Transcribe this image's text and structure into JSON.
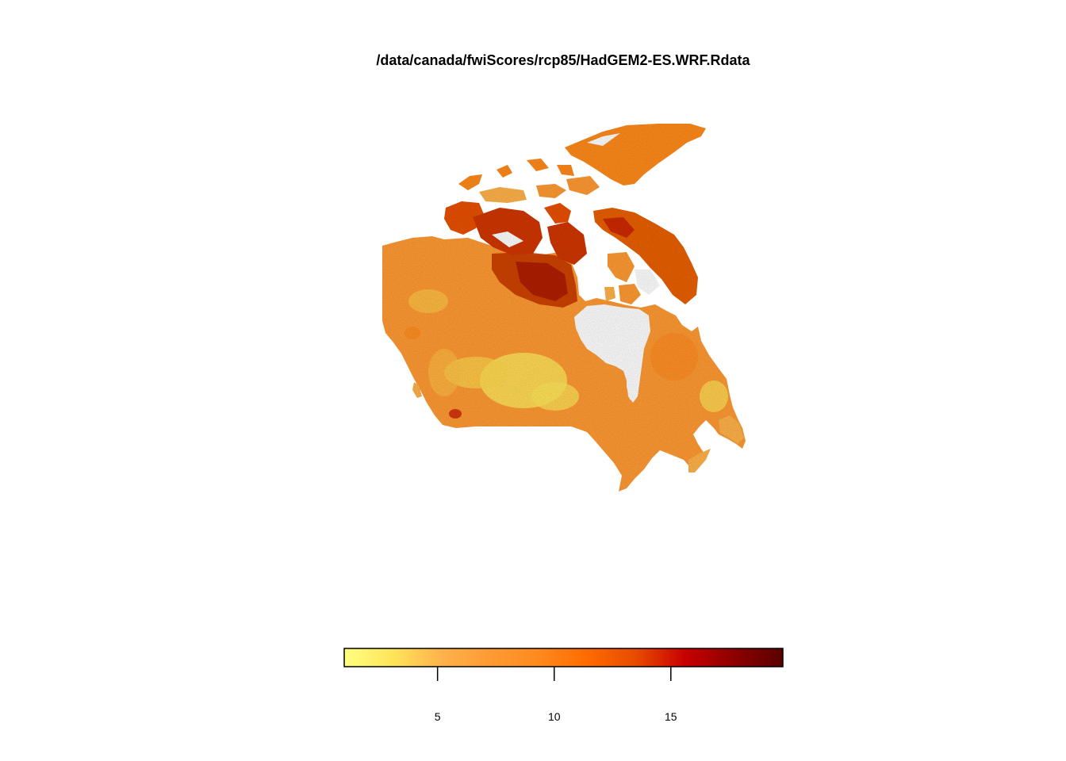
{
  "title": "/data/canada/fwiScores/rcp85/HadGEM2-ES.WRF.Rdata",
  "legend": {
    "min": 1,
    "max": 19.8,
    "ticks": [
      {
        "value": 5,
        "label": "5"
      },
      {
        "value": 10,
        "label": "10"
      },
      {
        "value": 15,
        "label": "15"
      }
    ],
    "colors": [
      "#ffff80",
      "#ffe45a",
      "#ffb24a",
      "#ff9a34",
      "#ff8a1c",
      "#ff6a00",
      "#e84a00",
      "#c80000",
      "#8e0000",
      "#5a0000"
    ]
  },
  "map": {
    "description_colors": {
      "low": "#ffe45a",
      "mid": "#ff9a34",
      "high": "#c82000",
      "arctic": "#ff8a1c"
    }
  }
}
